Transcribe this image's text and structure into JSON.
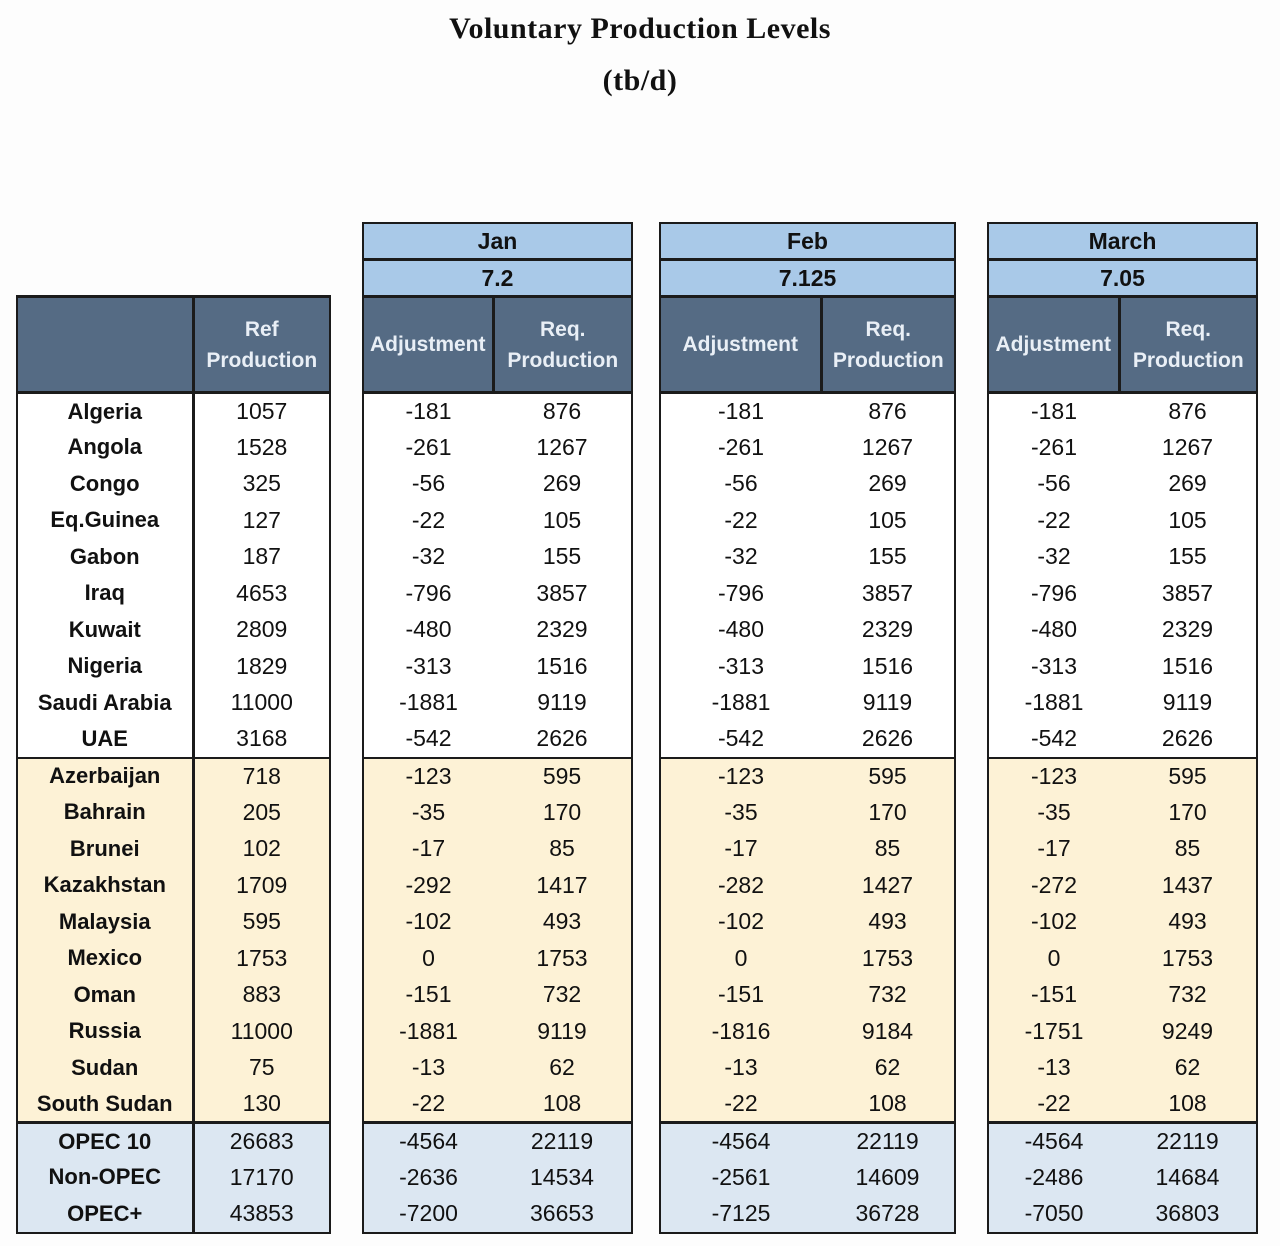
{
  "title": "Voluntary Production Levels",
  "subtitle": "(tb/d)",
  "ref_header": [
    "Ref",
    "Production"
  ],
  "adj_header": "Adjustment",
  "req_header": [
    "Req.",
    "Production"
  ],
  "months": [
    {
      "name": "Jan",
      "total_cut": "7.2"
    },
    {
      "name": "Feb",
      "total_cut": "7.125"
    },
    {
      "name": "March",
      "total_cut": "7.05"
    }
  ],
  "rows": [
    {
      "group": "opec",
      "country": "Algeria",
      "ref": "1057",
      "m": [
        [
          "-181",
          "876"
        ],
        [
          "-181",
          "876"
        ],
        [
          "-181",
          "876"
        ]
      ]
    },
    {
      "group": "opec",
      "country": "Angola",
      "ref": "1528",
      "m": [
        [
          "-261",
          "1267"
        ],
        [
          "-261",
          "1267"
        ],
        [
          "-261",
          "1267"
        ]
      ]
    },
    {
      "group": "opec",
      "country": "Congo",
      "ref": "325",
      "m": [
        [
          "-56",
          "269"
        ],
        [
          "-56",
          "269"
        ],
        [
          "-56",
          "269"
        ]
      ]
    },
    {
      "group": "opec",
      "country": "Eq.Guinea",
      "ref": "127",
      "m": [
        [
          "-22",
          "105"
        ],
        [
          "-22",
          "105"
        ],
        [
          "-22",
          "105"
        ]
      ]
    },
    {
      "group": "opec",
      "country": "Gabon",
      "ref": "187",
      "m": [
        [
          "-32",
          "155"
        ],
        [
          "-32",
          "155"
        ],
        [
          "-32",
          "155"
        ]
      ]
    },
    {
      "group": "opec",
      "country": "Iraq",
      "ref": "4653",
      "m": [
        [
          "-796",
          "3857"
        ],
        [
          "-796",
          "3857"
        ],
        [
          "-796",
          "3857"
        ]
      ]
    },
    {
      "group": "opec",
      "country": "Kuwait",
      "ref": "2809",
      "m": [
        [
          "-480",
          "2329"
        ],
        [
          "-480",
          "2329"
        ],
        [
          "-480",
          "2329"
        ]
      ]
    },
    {
      "group": "opec",
      "country": "Nigeria",
      "ref": "1829",
      "m": [
        [
          "-313",
          "1516"
        ],
        [
          "-313",
          "1516"
        ],
        [
          "-313",
          "1516"
        ]
      ]
    },
    {
      "group": "opec",
      "country": "Saudi Arabia",
      "ref": "11000",
      "m": [
        [
          "-1881",
          "9119"
        ],
        [
          "-1881",
          "9119"
        ],
        [
          "-1881",
          "9119"
        ]
      ]
    },
    {
      "group": "opec",
      "country": "UAE",
      "ref": "3168",
      "m": [
        [
          "-542",
          "2626"
        ],
        [
          "-542",
          "2626"
        ],
        [
          "-542",
          "2626"
        ]
      ]
    },
    {
      "group": "non",
      "country": "Azerbaijan",
      "ref": "718",
      "m": [
        [
          "-123",
          "595"
        ],
        [
          "-123",
          "595"
        ],
        [
          "-123",
          "595"
        ]
      ]
    },
    {
      "group": "non",
      "country": "Bahrain",
      "ref": "205",
      "m": [
        [
          "-35",
          "170"
        ],
        [
          "-35",
          "170"
        ],
        [
          "-35",
          "170"
        ]
      ]
    },
    {
      "group": "non",
      "country": "Brunei",
      "ref": "102",
      "m": [
        [
          "-17",
          "85"
        ],
        [
          "-17",
          "85"
        ],
        [
          "-17",
          "85"
        ]
      ]
    },
    {
      "group": "non",
      "country": "Kazakhstan",
      "ref": "1709",
      "m": [
        [
          "-292",
          "1417"
        ],
        [
          "-282",
          "1427"
        ],
        [
          "-272",
          "1437"
        ]
      ]
    },
    {
      "group": "non",
      "country": "Malaysia",
      "ref": "595",
      "m": [
        [
          "-102",
          "493"
        ],
        [
          "-102",
          "493"
        ],
        [
          "-102",
          "493"
        ]
      ]
    },
    {
      "group": "non",
      "country": "Mexico",
      "ref": "1753",
      "m": [
        [
          "0",
          "1753"
        ],
        [
          "0",
          "1753"
        ],
        [
          "0",
          "1753"
        ]
      ]
    },
    {
      "group": "non",
      "country": "Oman",
      "ref": "883",
      "m": [
        [
          "-151",
          "732"
        ],
        [
          "-151",
          "732"
        ],
        [
          "-151",
          "732"
        ]
      ]
    },
    {
      "group": "non",
      "country": "Russia",
      "ref": "11000",
      "m": [
        [
          "-1881",
          "9119"
        ],
        [
          "-1816",
          "9184"
        ],
        [
          "-1751",
          "9249"
        ]
      ]
    },
    {
      "group": "non",
      "country": "Sudan",
      "ref": "75",
      "m": [
        [
          "-13",
          "62"
        ],
        [
          "-13",
          "62"
        ],
        [
          "-13",
          "62"
        ]
      ]
    },
    {
      "group": "non",
      "country": "South Sudan",
      "ref": "130",
      "m": [
        [
          "-22",
          "108"
        ],
        [
          "-22",
          "108"
        ],
        [
          "-22",
          "108"
        ]
      ]
    },
    {
      "group": "tot",
      "country": "OPEC 10",
      "ref": "26683",
      "m": [
        [
          "-4564",
          "22119"
        ],
        [
          "-4564",
          "22119"
        ],
        [
          "-4564",
          "22119"
        ]
      ]
    },
    {
      "group": "tot",
      "country": "Non-OPEC",
      "ref": "17170",
      "m": [
        [
          "-2636",
          "14534"
        ],
        [
          "-2561",
          "14609"
        ],
        [
          "-2486",
          "14684"
        ]
      ]
    },
    {
      "group": "tot",
      "country": "OPEC+",
      "ref": "43853",
      "m": [
        [
          "-7200",
          "36653"
        ],
        [
          "-7125",
          "36728"
        ],
        [
          "-7050",
          "36803"
        ]
      ]
    }
  ]
}
